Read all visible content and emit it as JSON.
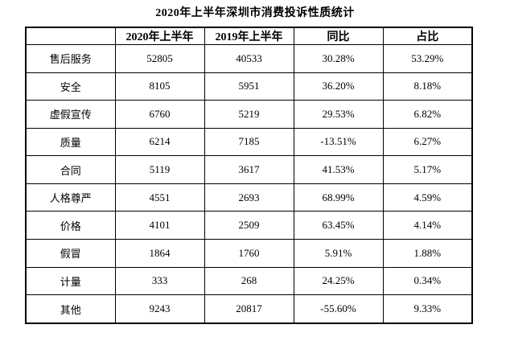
{
  "title": "2020年上半年深圳市消费投诉性质统计",
  "table": {
    "columns": [
      "",
      "2020年上半年",
      "2019年上半年",
      "同比",
      "占比"
    ],
    "rows": [
      [
        "售后服务",
        "52805",
        "40533",
        "30.28%",
        "53.29%"
      ],
      [
        "安全",
        "8105",
        "5951",
        "36.20%",
        "8.18%"
      ],
      [
        "虚假宣传",
        "6760",
        "5219",
        "29.53%",
        "6.82%"
      ],
      [
        "质量",
        "6214",
        "7185",
        "-13.51%",
        "6.27%"
      ],
      [
        "合同",
        "5119",
        "3617",
        "41.53%",
        "5.17%"
      ],
      [
        "人格尊严",
        "4551",
        "2693",
        "68.99%",
        "4.59%"
      ],
      [
        "价格",
        "4101",
        "2509",
        "63.45%",
        "4.14%"
      ],
      [
        "假冒",
        "1864",
        "1760",
        "5.91%",
        "1.88%"
      ],
      [
        "计量",
        "333",
        "268",
        "24.25%",
        "0.34%"
      ],
      [
        "其他",
        "9243",
        "20817",
        "-55.60%",
        "9.33%"
      ]
    ]
  }
}
